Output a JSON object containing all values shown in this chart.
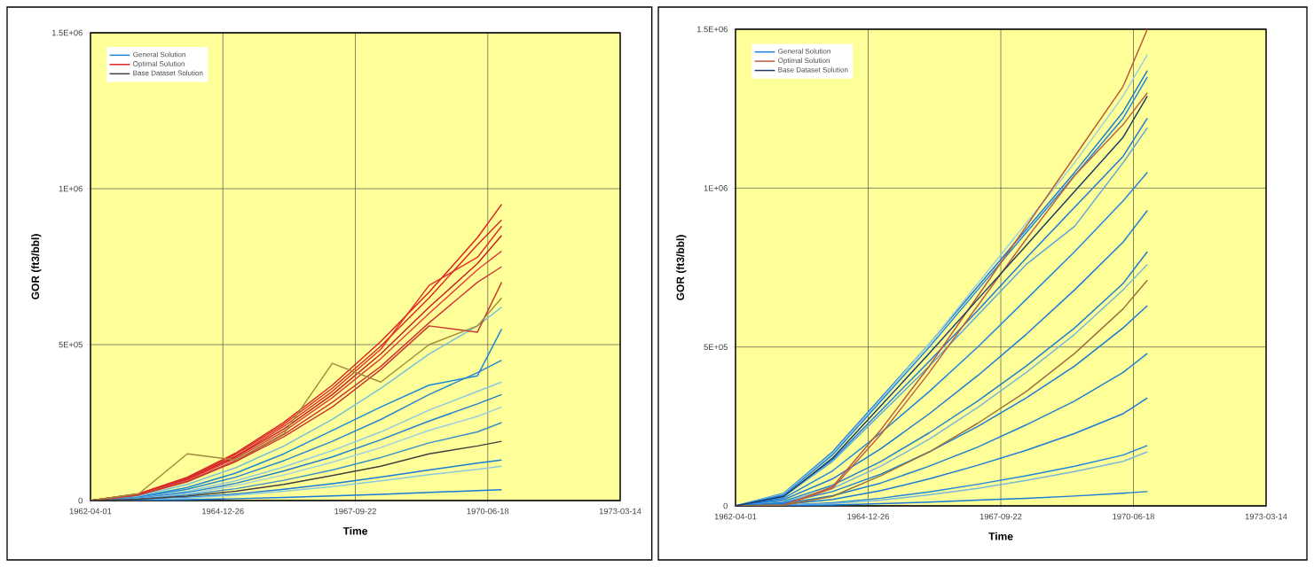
{
  "chart_data": [
    {
      "type": "line",
      "xlabel": "Time",
      "ylabel": "GOR (ft3/bbl)",
      "grid": true,
      "legend": "top left",
      "x": [
        "1962-04-01",
        "1963-04-01",
        "1964-04-01",
        "1965-04-01",
        "1966-04-01",
        "1967-04-01",
        "1968-04-01",
        "1969-04-01",
        "1970-04-01",
        "1970-10-01"
      ],
      "xlim": [
        "1962-04-01",
        "1973-03-14"
      ],
      "xticks": [
        "1962-04-01",
        "1964-12-26",
        "1967-09-22",
        "1970-06-18",
        "1973-03-14"
      ],
      "ylim": [
        0,
        1500000
      ],
      "yticks": [
        0,
        {
          "value": 500000,
          "label": "5E+05"
        },
        {
          "value": 1000000,
          "label": "1E+06"
        },
        {
          "value": 1500000,
          "label": "1.5E+06"
        }
      ],
      "series": [
        {
          "name": "General Solution",
          "color": "#1a8ad8",
          "values": [
            0,
            12000,
            42000,
            88000,
            150000,
            225000,
            300000,
            370000,
            400000,
            550000
          ]
        },
        {
          "color": "#74c0d8",
          "values": [
            0,
            15000,
            52000,
            105000,
            175000,
            260000,
            360000,
            470000,
            560000,
            620000
          ]
        },
        {
          "color": "#2a86d0",
          "values": [
            0,
            10000,
            36000,
            75000,
            128000,
            190000,
            260000,
            340000,
            410000,
            450000
          ]
        },
        {
          "color": "#8cc8e0",
          "values": [
            0,
            8000,
            30000,
            63000,
            108000,
            160000,
            220000,
            290000,
            350000,
            380000
          ]
        },
        {
          "color": "#1f7fd0",
          "values": [
            0,
            7000,
            26000,
            55000,
            95000,
            140000,
            195000,
            255000,
            310000,
            340000
          ]
        },
        {
          "color": "#9ccfe4",
          "values": [
            0,
            6000,
            22000,
            48000,
            82000,
            123000,
            170000,
            225000,
            270000,
            300000
          ]
        },
        {
          "color": "#3a90c8",
          "values": [
            0,
            5000,
            18000,
            38000,
            65000,
            98000,
            138000,
            185000,
            220000,
            250000
          ]
        },
        {
          "color": "#1a7ad8",
          "values": [
            0,
            3000,
            10000,
            21000,
            36000,
            54000,
            75000,
            98000,
            120000,
            130000
          ]
        },
        {
          "color": "#8cc8e0",
          "values": [
            0,
            3000,
            8000,
            17000,
            30000,
            45000,
            63000,
            83000,
            100000,
            110000
          ]
        },
        {
          "color": "#1a7ad8",
          "values": [
            0,
            1000,
            3000,
            6000,
            10000,
            15000,
            20000,
            26000,
            32000,
            35000
          ]
        },
        {
          "name": "Optimal Solution",
          "color": "#e02020",
          "values": [
            0,
            22000,
            75000,
            152000,
            251000,
            370000,
            510000,
            668000,
            843000,
            950000
          ]
        },
        {
          "color": "#d82a2a",
          "values": [
            0,
            21000,
            72000,
            148000,
            245000,
            360000,
            495000,
            650000,
            820000,
            900000
          ]
        },
        {
          "color": "#e03030",
          "values": [
            0,
            20000,
            70000,
            142000,
            238000,
            350000,
            485000,
            690000,
            780000,
            880000
          ]
        },
        {
          "color": "#c82020",
          "values": [
            0,
            20000,
            68000,
            140000,
            230000,
            340000,
            470000,
            620000,
            760000,
            850000
          ]
        },
        {
          "color": "#e04040",
          "values": [
            0,
            19000,
            66000,
            135000,
            222000,
            330000,
            455000,
            600000,
            740000,
            800000
          ]
        },
        {
          "color": "#d03838",
          "values": [
            0,
            18000,
            62000,
            128000,
            212000,
            315000,
            430000,
            570000,
            700000,
            750000
          ]
        },
        {
          "color": "#c83a30",
          "values": [
            0,
            18000,
            60000,
            125000,
            205000,
            300000,
            420000,
            560000,
            540000,
            700000
          ]
        },
        {
          "color": "#a08a40",
          "values": [
            0,
            22000,
            150000,
            130000,
            215000,
            440000,
            380000,
            500000,
            560000,
            650000
          ]
        },
        {
          "name": "Base Dataset Solution",
          "color": "#404040",
          "values": [
            0,
            4000,
            14000,
            30000,
            52000,
            80000,
            110000,
            150000,
            175000,
            190000
          ]
        }
      ]
    },
    {
      "type": "line",
      "xlabel": "Time",
      "ylabel": "GOR (ft3/bbl)",
      "grid": true,
      "legend": "top left",
      "x": [
        "1962-04-01",
        "1963-04-01",
        "1964-04-01",
        "1965-04-01",
        "1966-04-01",
        "1967-04-01",
        "1968-04-01",
        "1969-04-01",
        "1970-04-01",
        "1970-10-01"
      ],
      "xlim": [
        "1962-04-01",
        "1973-03-14"
      ],
      "xticks": [
        "1962-04-01",
        "1964-12-26",
        "1967-09-22",
        "1970-06-18",
        "1973-03-14"
      ],
      "ylim": [
        0,
        1500000
      ],
      "yticks": [
        0,
        {
          "value": 500000,
          "label": "5E+05"
        },
        {
          "value": 1000000,
          "label": "1E+06"
        },
        {
          "value": 1500000,
          "label": "1.5E+06"
        }
      ],
      "series": [
        {
          "name": "General Solution",
          "color": "#1a7ad8",
          "values": [
            0,
            40000,
            170000,
            340000,
            510000,
            690000,
            870000,
            1050000,
            1240000,
            1370000
          ]
        },
        {
          "color": "#9ccfe4",
          "values": [
            0,
            38000,
            165000,
            335000,
            510000,
            700000,
            890000,
            1080000,
            1290000,
            1420000
          ]
        },
        {
          "color": "#1f86e0",
          "values": [
            0,
            35000,
            160000,
            330000,
            500000,
            680000,
            860000,
            1040000,
            1220000,
            1350000
          ]
        },
        {
          "color": "#1a7ad8",
          "values": [
            0,
            32000,
            145000,
            300000,
            455000,
            615000,
            780000,
            940000,
            1100000,
            1220000
          ]
        },
        {
          "color": "#5aa8d8",
          "values": [
            0,
            30000,
            140000,
            290000,
            440000,
            600000,
            760000,
            880000,
            1080000,
            1190000
          ]
        },
        {
          "color": "#1f86e0",
          "values": [
            0,
            25000,
            110000,
            230000,
            360000,
            500000,
            650000,
            800000,
            960000,
            1050000
          ]
        },
        {
          "color": "#1a7ad8",
          "values": [
            0,
            20000,
            85000,
            180000,
            290000,
            410000,
            540000,
            680000,
            830000,
            930000
          ]
        },
        {
          "color": "#1f7fd0",
          "values": [
            0,
            15000,
            65000,
            140000,
            230000,
            330000,
            440000,
            560000,
            700000,
            800000
          ]
        },
        {
          "color": "#7ab8d8",
          "values": [
            0,
            12000,
            55000,
            125000,
            210000,
            310000,
            420000,
            540000,
            680000,
            760000
          ]
        },
        {
          "color": "#1a7ad8",
          "values": [
            0,
            10000,
            45000,
            100000,
            170000,
            250000,
            340000,
            440000,
            560000,
            630000
          ]
        },
        {
          "color": "#1f7fd0",
          "values": [
            0,
            7000,
            32000,
            72000,
            125000,
            185000,
            255000,
            330000,
            420000,
            480000
          ]
        },
        {
          "color": "#1a7ad8",
          "values": [
            0,
            5000,
            20000,
            48000,
            85000,
            128000,
            175000,
            228000,
            290000,
            340000
          ]
        },
        {
          "color": "#1f86e0",
          "values": [
            0,
            2000,
            10000,
            24000,
            44000,
            68000,
            95000,
            125000,
            160000,
            190000
          ]
        },
        {
          "color": "#7ab8d8",
          "values": [
            0,
            2000,
            7000,
            18000,
            35000,
            55000,
            80000,
            108000,
            140000,
            170000
          ]
        },
        {
          "color": "#1a7ad8",
          "values": [
            0,
            1000,
            3000,
            7000,
            12000,
            18000,
            24000,
            31000,
            40000,
            45000
          ]
        },
        {
          "name": "Optimal Solution",
          "color": "#b85a3a",
          "values": [
            0,
            2000,
            60000,
            240000,
            440000,
            660000,
            880000,
            1100000,
            1320000,
            1500000
          ]
        },
        {
          "color": "#c06040",
          "values": [
            0,
            2000,
            55000,
            225000,
            420000,
            630000,
            840000,
            1040000,
            1200000,
            1300000
          ]
        },
        {
          "color": "#9a7040",
          "values": [
            0,
            2000,
            30000,
            95000,
            170000,
            260000,
            360000,
            480000,
            620000,
            710000
          ]
        },
        {
          "name": "Base Dataset Solution",
          "color": "#1a3a6a",
          "values": [
            0,
            30000,
            150000,
            315000,
            480000,
            650000,
            820000,
            990000,
            1160000,
            1290000
          ]
        }
      ]
    }
  ]
}
